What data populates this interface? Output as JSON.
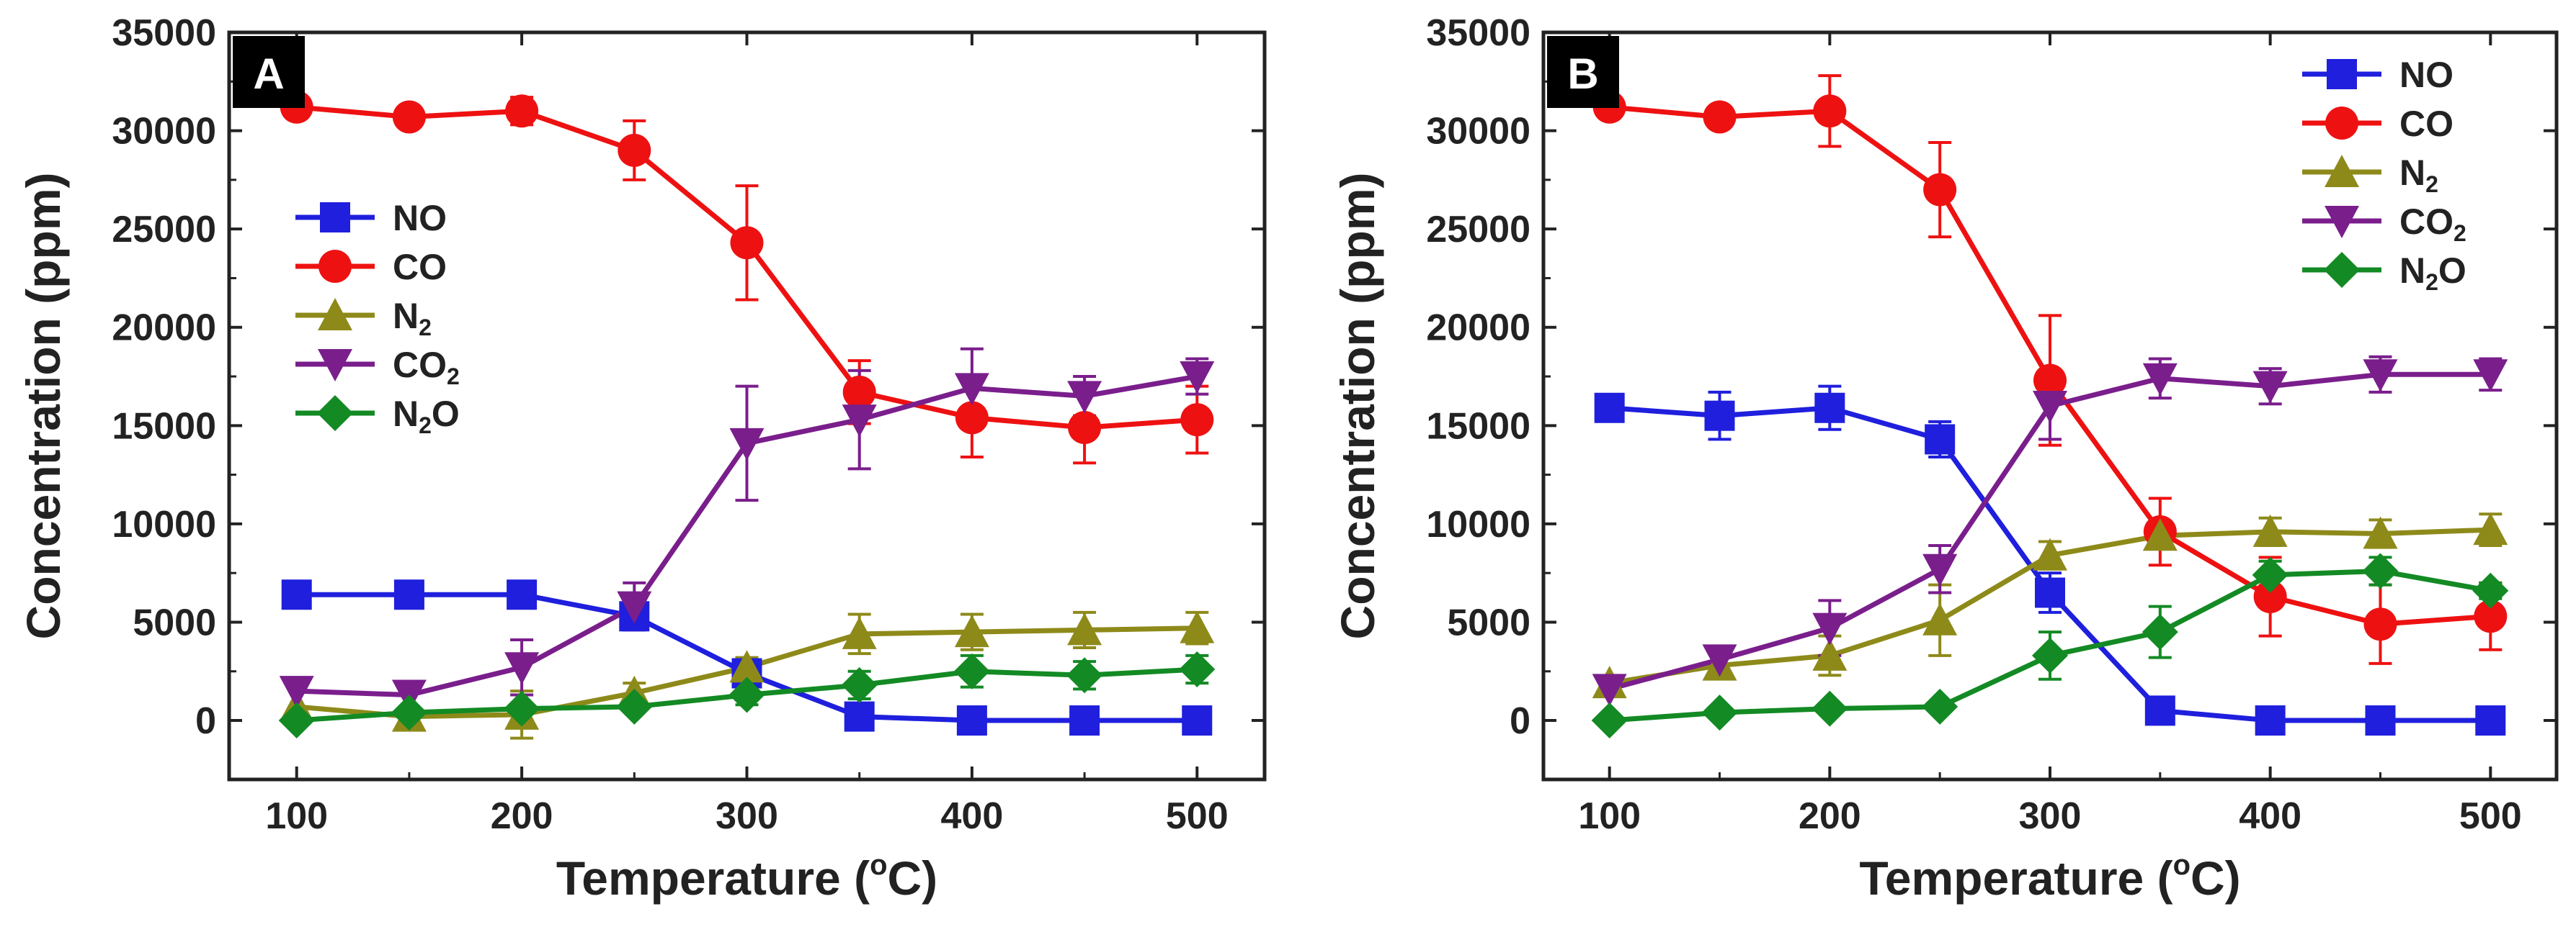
{
  "chart_data": [
    {
      "type": "line",
      "panel_label": "A",
      "xlabel": "Temperature (°C)",
      "xlabel_main": "Temperature (",
      "xlabel_degree": "o",
      "xlabel_unit": "C)",
      "ylabel": "Concentration (ppm)",
      "xlim": [
        70,
        530
      ],
      "ylim": [
        -3000,
        35000
      ],
      "xticks": [
        100,
        200,
        300,
        400,
        500
      ],
      "xtick_labels": [
        "100",
        "200",
        "300",
        "400",
        "500"
      ],
      "yticks": [
        0,
        5000,
        10000,
        15000,
        20000,
        25000,
        30000,
        35000
      ],
      "ytick_labels": [
        "0",
        "5000",
        "10000",
        "15000",
        "20000",
        "25000",
        "30000",
        "35000"
      ],
      "legend_position": "center-left",
      "x": [
        100,
        150,
        200,
        250,
        300,
        350,
        400,
        450,
        500
      ],
      "series": [
        {
          "name": "NO",
          "label_main": "NO",
          "label_sub": "",
          "label_tail": "",
          "color": "#1f1fdd",
          "marker": "square",
          "values": [
            6400,
            6400,
            6400,
            5300,
            2400,
            200,
            0,
            0,
            0
          ],
          "errors": [
            0,
            0,
            0,
            0,
            0,
            0,
            0,
            0,
            0
          ]
        },
        {
          "name": "CO",
          "label_main": "CO",
          "label_sub": "",
          "label_tail": "",
          "color": "#ee1111",
          "marker": "circle",
          "values": [
            31200,
            30700,
            31000,
            29000,
            24300,
            16700,
            15400,
            14900,
            15300
          ],
          "errors": [
            0,
            0,
            700,
            1500,
            2900,
            1600,
            2000,
            1800,
            1700
          ]
        },
        {
          "name": "N2",
          "label_main": "N",
          "label_sub": "2",
          "label_tail": "",
          "color": "#8e8a1a",
          "marker": "triangle-up",
          "values": [
            700,
            200,
            300,
            1400,
            2700,
            4400,
            4500,
            4600,
            4700
          ],
          "errors": [
            0,
            0,
            1200,
            500,
            500,
            1000,
            900,
            900,
            800
          ]
        },
        {
          "name": "CO2",
          "label_main": "CO",
          "label_sub": "2",
          "label_tail": "",
          "color": "#7a1e8c",
          "marker": "triangle-down",
          "values": [
            1500,
            1300,
            2700,
            5800,
            14100,
            15300,
            16900,
            16500,
            17500
          ],
          "errors": [
            0,
            0,
            1400,
            1200,
            2900,
            2500,
            2000,
            1000,
            900
          ]
        },
        {
          "name": "N2O",
          "label_main": "N",
          "label_sub": "2",
          "label_tail": "O",
          "color": "#138a24",
          "marker": "diamond",
          "values": [
            0,
            400,
            600,
            700,
            1300,
            1800,
            2500,
            2300,
            2600
          ],
          "errors": [
            0,
            0,
            0,
            0,
            500,
            700,
            800,
            700,
            700
          ]
        }
      ]
    },
    {
      "type": "line",
      "panel_label": "B",
      "xlabel": "Temperature (°C)",
      "xlabel_main": "Temperature (",
      "xlabel_degree": "o",
      "xlabel_unit": "C)",
      "ylabel": "Concentration (ppm)",
      "xlim": [
        70,
        530
      ],
      "ylim": [
        -3000,
        35000
      ],
      "xticks": [
        100,
        200,
        300,
        400,
        500
      ],
      "xtick_labels": [
        "100",
        "200",
        "300",
        "400",
        "500"
      ],
      "yticks": [
        0,
        5000,
        10000,
        15000,
        20000,
        25000,
        30000,
        35000
      ],
      "ytick_labels": [
        "0",
        "5000",
        "10000",
        "15000",
        "20000",
        "25000",
        "30000",
        "35000"
      ],
      "legend_position": "top-right",
      "x": [
        100,
        150,
        200,
        250,
        300,
        350,
        400,
        450,
        500
      ],
      "series": [
        {
          "name": "NO",
          "label_main": "NO",
          "label_sub": "",
          "label_tail": "",
          "color": "#1f1fdd",
          "marker": "square",
          "values": [
            15900,
            15500,
            15900,
            14300,
            6500,
            500,
            0,
            0,
            0
          ],
          "errors": [
            0,
            1200,
            1100,
            900,
            1000,
            0,
            0,
            0,
            0
          ]
        },
        {
          "name": "CO",
          "label_main": "CO",
          "label_sub": "",
          "label_tail": "",
          "color": "#ee1111",
          "marker": "circle",
          "values": [
            31200,
            30700,
            31000,
            27000,
            17300,
            9600,
            6300,
            4900,
            5300
          ],
          "errors": [
            0,
            0,
            1800,
            2400,
            3300,
            1700,
            2000,
            2000,
            1700
          ]
        },
        {
          "name": "N2",
          "label_main": "N",
          "label_sub": "2",
          "label_tail": "",
          "color": "#8e8a1a",
          "marker": "triangle-up",
          "values": [
            1900,
            2800,
            3300,
            5100,
            8400,
            9400,
            9600,
            9500,
            9700
          ],
          "errors": [
            0,
            0,
            1000,
            1800,
            700,
            600,
            700,
            700,
            800
          ]
        },
        {
          "name": "CO2",
          "label_main": "CO",
          "label_sub": "2",
          "label_tail": "",
          "color": "#7a1e8c",
          "marker": "triangle-down",
          "values": [
            1600,
            3100,
            4700,
            7700,
            16000,
            17400,
            17000,
            17600,
            17600
          ],
          "errors": [
            0,
            0,
            1400,
            1200,
            1700,
            1000,
            900,
            900,
            800
          ]
        },
        {
          "name": "N2O",
          "label_main": "N",
          "label_sub": "2",
          "label_tail": "O",
          "color": "#138a24",
          "marker": "diamond",
          "values": [
            0,
            400,
            600,
            700,
            3300,
            4500,
            7400,
            7600,
            6600
          ],
          "errors": [
            0,
            0,
            0,
            0,
            1200,
            1300,
            700,
            700,
            400
          ]
        }
      ]
    }
  ]
}
